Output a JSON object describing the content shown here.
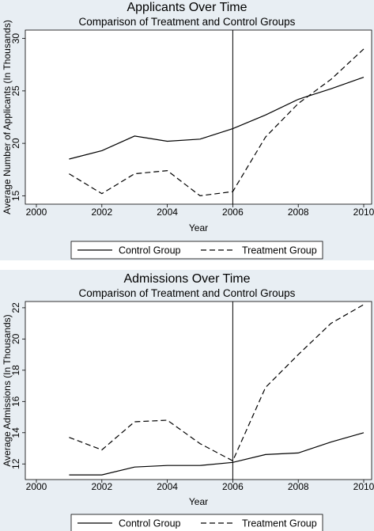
{
  "chart_data": [
    {
      "type": "line",
      "title": "Applicants Over Time",
      "subtitle": "Comparison of Treatment and Control Groups",
      "xlabel": "Year",
      "ylabel": "Average Number of Applicants (In Thousands)",
      "xlim": [
        2000,
        2010
      ],
      "ylim": [
        14.2,
        30.8
      ],
      "xticks": [
        2000,
        2002,
        2004,
        2006,
        2008,
        2010
      ],
      "yticks": [
        15,
        20,
        25,
        30
      ],
      "vline": 2006,
      "grid": false,
      "legend_position": "bottom",
      "x": [
        2001,
        2002,
        2003,
        2004,
        2005,
        2006,
        2007,
        2008,
        2009,
        2010
      ],
      "series": [
        {
          "name": "Control Group",
          "style": "solid",
          "values": [
            18.5,
            19.3,
            20.7,
            20.2,
            20.4,
            21.4,
            22.7,
            24.2,
            25.2,
            26.3
          ]
        },
        {
          "name": "Treatment Group",
          "style": "dashed",
          "values": [
            17.1,
            15.2,
            17.1,
            17.4,
            15.0,
            15.4,
            20.6,
            23.8,
            26.1,
            29.0
          ]
        }
      ]
    },
    {
      "type": "line",
      "title": "Admissions Over Time",
      "subtitle": "Comparison of Treatment and Control Groups",
      "xlabel": "Year",
      "ylabel": "Average Admissions (In Thousands)",
      "xlim": [
        2000,
        2010
      ],
      "ylim": [
        11.0,
        22.4
      ],
      "xticks": [
        2000,
        2002,
        2004,
        2006,
        2008,
        2010
      ],
      "yticks": [
        12,
        14,
        16,
        18,
        20,
        22
      ],
      "vline": 2006,
      "grid": false,
      "legend_position": "bottom",
      "x": [
        2001,
        2002,
        2003,
        2004,
        2005,
        2006,
        2007,
        2008,
        2009,
        2010
      ],
      "series": [
        {
          "name": "Control Group",
          "style": "solid",
          "values": [
            11.3,
            11.3,
            11.8,
            11.9,
            11.9,
            12.1,
            12.6,
            12.7,
            13.4,
            14.0
          ]
        },
        {
          "name": "Treatment Group",
          "style": "dashed",
          "values": [
            13.7,
            12.9,
            14.7,
            14.8,
            13.3,
            12.2,
            16.9,
            19.0,
            21.0,
            22.2
          ]
        }
      ]
    }
  ],
  "colors": {
    "background": "#e8eef3",
    "plot_area": "#ffffff",
    "line": "#000000"
  }
}
